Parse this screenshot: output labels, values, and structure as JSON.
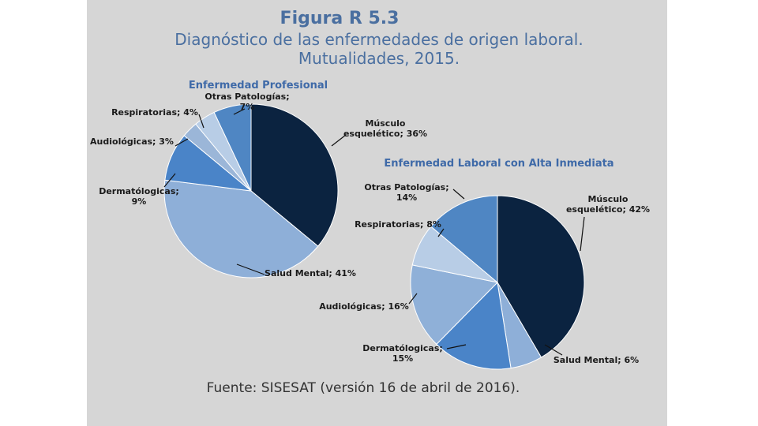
{
  "figure": {
    "title": "Figura R 5.3",
    "subtitle_line1": "Diagnóstico de las enfermedades de origen laboral.",
    "subtitle_line2": "Mutualidades, 2015.",
    "source": "Fuente: SISESAT (versión 16 de abril de 2016)."
  },
  "chart_data": [
    {
      "type": "pie",
      "title": "Enfermedad Profesional",
      "slices": [
        {
          "label": "Músculo esquelético; 36%",
          "label_lines": [
            "Músculo",
            "esquelético; 36%"
          ],
          "value": 36,
          "color": "#0b2340"
        },
        {
          "label": "Salud Mental; 41%",
          "label_lines": [
            "Salud Mental; 41%"
          ],
          "value": 41,
          "color": "#8eafd8"
        },
        {
          "label": "Dermatólogicas; 9%",
          "label_lines": [
            "Dermatólogicas;",
            "9%"
          ],
          "value": 9,
          "color": "#4a84c8"
        },
        {
          "label": "Audiológicas; 3%",
          "label_lines": [
            "Audiológicas; 3%"
          ],
          "value": 3,
          "color": "#9bb6d8"
        },
        {
          "label": "Respiratorias; 4%",
          "label_lines": [
            "Respiratorias; 4%"
          ],
          "value": 4,
          "color": "#b8cde6"
        },
        {
          "label": "Otras Patologías; 7%",
          "label_lines": [
            "Otras Patologías;",
            "7%"
          ],
          "value": 7,
          "color": "#4f86c3"
        }
      ]
    },
    {
      "type": "pie",
      "title": "Enfermedad Laboral con Alta Inmediata",
      "slices": [
        {
          "label": "Músculo esquelético; 42%",
          "label_lines": [
            "Músculo",
            "esquelético; 42%"
          ],
          "value": 42,
          "color": "#0b2340"
        },
        {
          "label": "Salud Mental; 6%",
          "label_lines": [
            "Salud Mental; 6%"
          ],
          "value": 6,
          "color": "#8eafd8"
        },
        {
          "label": "Dermatólogicas; 15%",
          "label_lines": [
            "Dermatólogicas;",
            "15%"
          ],
          "value": 15,
          "color": "#4a84c8"
        },
        {
          "label": "Audiológicas; 16%",
          "label_lines": [
            "Audiológicas; 16%"
          ],
          "value": 16,
          "color": "#8fb0d8"
        },
        {
          "label": "Respiratorias; 8%",
          "label_lines": [
            "Respiratorias; 8%"
          ],
          "value": 8,
          "color": "#b8cde6"
        },
        {
          "label": "Otras Patologías; 14%",
          "label_lines": [
            "Otras Patologías;",
            "14%"
          ],
          "value": 14,
          "color": "#4f86c3"
        }
      ]
    }
  ]
}
